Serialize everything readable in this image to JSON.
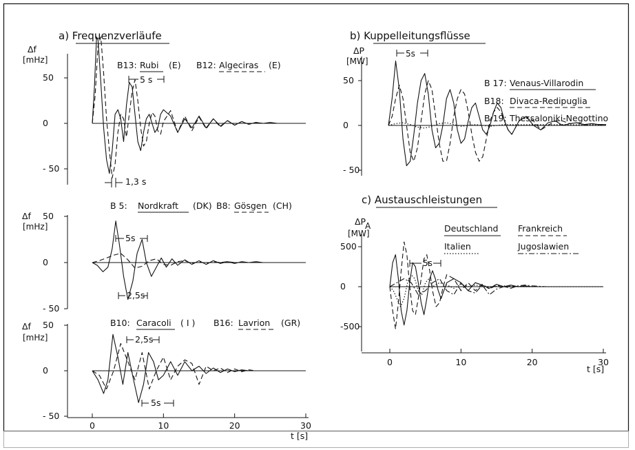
{
  "chart_data": [
    {
      "id": "a1",
      "type": "line",
      "panel_heading": "a) Frequenzverläufe",
      "ylabel": "Δf",
      "yunit": "[mHz]",
      "xlim": [
        0,
        30
      ],
      "ylim": [
        -70,
        100
      ],
      "yticks": [
        50,
        0,
        -50
      ],
      "ytick_labels": [
        "50",
        "0",
        "- 50"
      ],
      "series": [
        {
          "code": "B13:",
          "name": "Rubi",
          "country": "(E)",
          "style": "solid",
          "x": [
            0,
            0.3,
            0.6,
            0.8,
            1.2,
            1.6,
            2.0,
            2.4,
            2.8,
            3.2,
            3.6,
            4.0,
            4.4,
            4.8,
            5.2,
            5.6,
            6.0,
            6.4,
            6.8,
            7.2,
            7.6,
            8.0,
            8.4,
            8.8,
            9.2,
            9.6,
            10,
            11,
            12,
            13,
            14,
            15,
            16,
            17,
            18,
            19,
            20,
            21,
            22,
            23,
            24,
            25,
            26,
            27,
            28,
            29,
            30
          ],
          "y": [
            0,
            40,
            95,
            92,
            45,
            -5,
            -40,
            -55,
            -30,
            10,
            15,
            5,
            -20,
            20,
            45,
            40,
            10,
            -20,
            -30,
            -10,
            5,
            10,
            0,
            -10,
            -5,
            10,
            15,
            8,
            -10,
            5,
            -5,
            8,
            -5,
            5,
            -3,
            3,
            -2,
            2,
            -1,
            1,
            0,
            1,
            0,
            0,
            0,
            0,
            0
          ]
        },
        {
          "code": "B12:",
          "name": "Algeciras",
          "country": "(E)",
          "style": "dash",
          "x": [
            0,
            0.4,
            0.8,
            1.2,
            1.6,
            2.0,
            2.4,
            2.8,
            3.2,
            3.6,
            4.0,
            4.4,
            4.8,
            5.2,
            5.6,
            6.0,
            6.4,
            6.8,
            7.2,
            7.6,
            8.0,
            8.4,
            8.8,
            9.2,
            9.6,
            10,
            11,
            12,
            13,
            14,
            15,
            16,
            17,
            18,
            19,
            20,
            21,
            22,
            23,
            24,
            25,
            26,
            27,
            28,
            29,
            30
          ],
          "y": [
            0,
            30,
            85,
            95,
            55,
            5,
            -30,
            -60,
            -45,
            -10,
            10,
            5,
            -15,
            10,
            35,
            48,
            25,
            -5,
            -25,
            -20,
            0,
            12,
            8,
            -8,
            -12,
            2,
            14,
            -10,
            8,
            -8,
            7,
            -6,
            5,
            -4,
            3,
            -2,
            2,
            -1,
            1,
            0,
            0,
            0,
            0,
            0,
            0,
            0
          ]
        }
      ],
      "annotations": [
        "5 s",
        "1,3 s"
      ]
    },
    {
      "id": "a2",
      "type": "line",
      "ylabel": "Δf",
      "yunit": "[mHz]",
      "xlim": [
        0,
        30
      ],
      "ylim": [
        -50,
        50
      ],
      "yticks": [
        50,
        0,
        -50
      ],
      "ytick_labels": [
        "50",
        "0",
        "- 50"
      ],
      "series": [
        {
          "code": "B 5:",
          "name": "Nordkraft",
          "country": "(DK)",
          "style": "solid",
          "x": [
            0,
            0.7,
            1.5,
            2.2,
            2.8,
            3.3,
            3.8,
            4.4,
            5.0,
            5.7,
            6.3,
            7.0,
            7.6,
            8.3,
            9.0,
            9.7,
            10.4,
            11.2,
            12,
            13,
            14,
            15,
            16,
            17,
            18,
            19,
            20,
            21,
            22,
            23,
            24,
            25,
            26,
            27,
            28,
            29,
            30
          ],
          "y": [
            0,
            -3,
            -10,
            -5,
            15,
            45,
            20,
            -15,
            -40,
            -20,
            10,
            25,
            0,
            -15,
            -5,
            5,
            -5,
            4,
            -3,
            3,
            -2,
            2,
            -2,
            2,
            -1,
            1,
            -1,
            1,
            0,
            1,
            0,
            0,
            0,
            0,
            0,
            0,
            0
          ]
        },
        {
          "code": "B8:",
          "name": "Gösgen",
          "country": "(CH)",
          "style": "dash",
          "x": [
            0,
            1,
            2,
            3,
            4,
            5,
            6,
            7,
            8,
            9,
            10,
            11,
            12,
            13,
            14,
            15,
            16,
            17,
            18,
            19,
            20,
            22,
            24,
            26,
            28,
            30
          ],
          "y": [
            0,
            2,
            5,
            8,
            10,
            3,
            -6,
            -4,
            2,
            4,
            -2,
            -3,
            1,
            2,
            -1,
            1,
            -1,
            1,
            0,
            1,
            0,
            0,
            0,
            0,
            0,
            0
          ]
        }
      ],
      "annotations": [
        "5s",
        "2,5s"
      ]
    },
    {
      "id": "a3",
      "type": "line",
      "ylabel": "Δf",
      "yunit": "[mHz]",
      "xlim": [
        0,
        30
      ],
      "ylim": [
        -50,
        50
      ],
      "yticks": [
        50,
        0,
        -50
      ],
      "ytick_labels": [
        "50",
        "0",
        "- 50"
      ],
      "xticks": [
        0,
        10,
        20,
        30
      ],
      "xtick_labels": [
        "0",
        "10",
        "20",
        "30"
      ],
      "xlabel": "t [s]",
      "series": [
        {
          "code": "B10:",
          "name": "Caracoli",
          "country": "( I )",
          "style": "solid",
          "x": [
            0,
            0.8,
            1.6,
            2.2,
            2.9,
            3.6,
            4.3,
            5.0,
            5.8,
            6.5,
            7.2,
            7.9,
            8.6,
            9.3,
            10,
            11,
            12,
            13,
            14,
            15,
            16,
            17,
            18,
            19,
            20,
            21,
            22,
            23,
            24,
            25,
            26,
            27,
            28,
            29,
            30
          ],
          "y": [
            0,
            -10,
            -25,
            -10,
            40,
            15,
            -15,
            20,
            -10,
            -35,
            -15,
            20,
            10,
            -10,
            -5,
            10,
            -5,
            10,
            0,
            5,
            -3,
            3,
            -2,
            2,
            -1,
            1,
            0,
            0,
            0,
            0,
            0,
            0,
            0,
            0,
            0
          ]
        },
        {
          "code": "B16:",
          "name": "Lavrion",
          "country": "(GR)",
          "style": "dash",
          "x": [
            0,
            1,
            2,
            3,
            4,
            5,
            6,
            7,
            8,
            9,
            10,
            11,
            12,
            13,
            14,
            15,
            16,
            17,
            18,
            19,
            20,
            21,
            22,
            23,
            24,
            25,
            26,
            28,
            30
          ],
          "y": [
            0,
            -5,
            -20,
            0,
            30,
            10,
            -10,
            20,
            -20,
            0,
            15,
            -10,
            5,
            12,
            8,
            -15,
            5,
            0,
            3,
            -2,
            2,
            -1,
            1,
            0,
            0,
            0,
            0,
            0,
            0
          ]
        }
      ],
      "annotations": [
        "2,5s",
        "5s"
      ]
    },
    {
      "id": "b",
      "type": "line",
      "panel_heading": "b) Kuppelleitungsflüsse",
      "ylabel": "ΔP",
      "yunit": "[MW]",
      "xlim": [
        0,
        30
      ],
      "ylim": [
        -50,
        80
      ],
      "yticks": [
        50,
        0,
        -50
      ],
      "ytick_labels": [
        "50",
        "0",
        "- 50"
      ],
      "series": [
        {
          "code": "B 17:",
          "name": "Venaus-Villarodin",
          "style": "solid",
          "x": [
            0,
            0.5,
            1.0,
            1.5,
            2.0,
            2.5,
            3.0,
            3.5,
            4.0,
            4.5,
            5.0,
            5.5,
            6.0,
            6.5,
            7.0,
            7.5,
            8.0,
            8.5,
            9.0,
            9.5,
            10,
            10.5,
            11,
            11.5,
            12,
            12.5,
            13,
            13.5,
            14,
            14.5,
            15,
            15.5,
            16,
            16.5,
            17,
            18,
            19,
            20,
            21,
            22,
            23,
            24,
            25,
            26,
            27,
            28,
            29,
            30
          ],
          "y": [
            0,
            30,
            72,
            40,
            -15,
            -45,
            -40,
            -10,
            25,
            50,
            58,
            35,
            -5,
            -25,
            -20,
            0,
            30,
            40,
            25,
            -5,
            -20,
            -15,
            5,
            20,
            25,
            10,
            -5,
            -10,
            0,
            15,
            25,
            20,
            5,
            -5,
            -10,
            5,
            10,
            0,
            -5,
            3,
            5,
            0,
            2,
            3,
            1,
            2,
            1,
            1
          ]
        },
        {
          "code": "B18:",
          "name": "Divaca-Redipuglia",
          "style": "dash",
          "x": [
            0,
            0.5,
            1.0,
            1.5,
            2.0,
            2.5,
            3.0,
            3.5,
            4.0,
            4.5,
            5.0,
            5.5,
            6.0,
            6.5,
            7.0,
            7.5,
            8.0,
            8.5,
            9.0,
            9.5,
            10,
            10.5,
            11,
            11.5,
            12,
            12.5,
            13,
            13.5,
            14,
            14.5,
            15,
            15.5,
            16,
            16.5,
            17,
            18,
            19,
            20,
            21,
            22,
            23,
            24,
            25,
            26,
            27,
            28,
            29,
            30
          ],
          "y": [
            0,
            10,
            30,
            45,
            30,
            0,
            -30,
            -40,
            -25,
            5,
            35,
            50,
            40,
            10,
            -20,
            -40,
            -40,
            -20,
            10,
            30,
            40,
            35,
            15,
            -10,
            -30,
            -40,
            -35,
            -15,
            5,
            15,
            20,
            15,
            5,
            -5,
            -10,
            5,
            10,
            5,
            -5,
            0,
            5,
            5,
            2,
            3,
            0,
            2,
            1,
            1
          ]
        },
        {
          "code": "B 19:",
          "name": "Thessaloniki-Negottino",
          "style": "dot",
          "x": [
            0,
            1,
            2,
            3,
            4,
            5,
            6,
            7,
            8,
            9,
            10,
            12,
            14,
            16,
            18,
            20,
            22,
            24,
            26,
            28,
            30
          ],
          "y": [
            0,
            2,
            3,
            1,
            -2,
            -3,
            -1,
            2,
            3,
            1,
            -1,
            1,
            -1,
            1,
            0,
            1,
            0,
            1,
            0,
            0,
            0
          ]
        }
      ],
      "annotations": [
        "5s"
      ]
    },
    {
      "id": "c",
      "type": "line",
      "panel_heading": "c) Austauschleistungen",
      "ylabel": "ΔP",
      "ylabel_sub": "A",
      "yunit": "[MW]",
      "xlim": [
        0,
        30
      ],
      "ylim": [
        -600,
        620
      ],
      "yticks": [
        500,
        0,
        -500
      ],
      "ytick_labels": [
        "500",
        "0",
        "-500"
      ],
      "xticks": [
        0,
        10,
        20,
        30
      ],
      "xtick_labels": [
        "0",
        "10",
        "20",
        "30"
      ],
      "xlabel": "t [s]",
      "series": [
        {
          "name": "Deutschland",
          "style": "solid",
          "x": [
            0,
            0.4,
            0.8,
            1.2,
            1.6,
            2.0,
            2.4,
            2.8,
            3.2,
            3.6,
            4.0,
            4.4,
            4.8,
            5.2,
            5.6,
            6.0,
            6.4,
            6.8,
            7.2,
            7.6,
            8,
            9,
            10,
            11,
            12,
            13,
            14,
            15,
            16,
            17,
            18,
            19,
            20,
            22,
            24,
            26,
            28,
            30
          ],
          "y": [
            0,
            300,
            400,
            100,
            -300,
            -480,
            -300,
            50,
            300,
            250,
            50,
            -200,
            -350,
            -150,
            100,
            200,
            100,
            -50,
            -150,
            -50,
            50,
            100,
            50,
            -50,
            50,
            20,
            -20,
            30,
            0,
            20,
            0,
            10,
            0,
            0,
            0,
            0,
            0,
            0
          ]
        },
        {
          "name": "Frankreich",
          "style": "dash",
          "x": [
            0,
            0.4,
            0.8,
            1.2,
            1.6,
            2.0,
            2.4,
            2.8,
            3.2,
            3.6,
            4.0,
            4.4,
            4.8,
            5.2,
            5.6,
            6.0,
            6.5,
            7,
            7.5,
            8,
            9,
            10,
            11,
            12,
            13,
            14,
            15,
            16,
            17,
            18,
            20,
            22,
            24,
            26,
            28,
            30
          ],
          "y": [
            0,
            -300,
            -530,
            -200,
            200,
            560,
            400,
            0,
            -300,
            -350,
            -150,
            100,
            350,
            400,
            200,
            -50,
            -250,
            -200,
            0,
            150,
            100,
            -50,
            50,
            -50,
            30,
            -30,
            20,
            -10,
            10,
            0,
            0,
            0,
            0,
            0,
            0,
            0
          ]
        },
        {
          "name": "Italien",
          "style": "dot",
          "x": [
            0,
            0.5,
            1.0,
            1.5,
            2.0,
            2.5,
            3.0,
            3.5,
            4.0,
            4.5,
            5.0,
            5.5,
            6.0,
            7,
            8,
            9,
            10,
            11,
            12,
            14,
            16,
            18,
            20,
            22,
            24,
            26,
            28,
            30
          ],
          "y": [
            0,
            -50,
            -150,
            -250,
            -150,
            50,
            150,
            100,
            -50,
            -100,
            50,
            100,
            0,
            50,
            20,
            -20,
            30,
            0,
            20,
            0,
            10,
            0,
            0,
            0,
            0,
            0,
            0,
            0
          ]
        },
        {
          "name": "Jugoslawien",
          "style": "dashdot",
          "x": [
            0,
            1,
            2,
            3,
            4,
            5,
            6,
            7,
            8,
            9,
            10,
            11,
            12,
            13,
            14,
            15,
            16,
            17,
            18,
            19,
            20,
            22,
            24,
            26,
            28,
            30
          ],
          "y": [
            0,
            50,
            100,
            50,
            -100,
            -50,
            50,
            100,
            -50,
            -100,
            50,
            -50,
            -80,
            20,
            -100,
            -30,
            0,
            -20,
            10,
            20,
            10,
            0,
            0,
            0,
            0,
            0
          ]
        }
      ],
      "annotations": [
        "5s"
      ]
    }
  ]
}
